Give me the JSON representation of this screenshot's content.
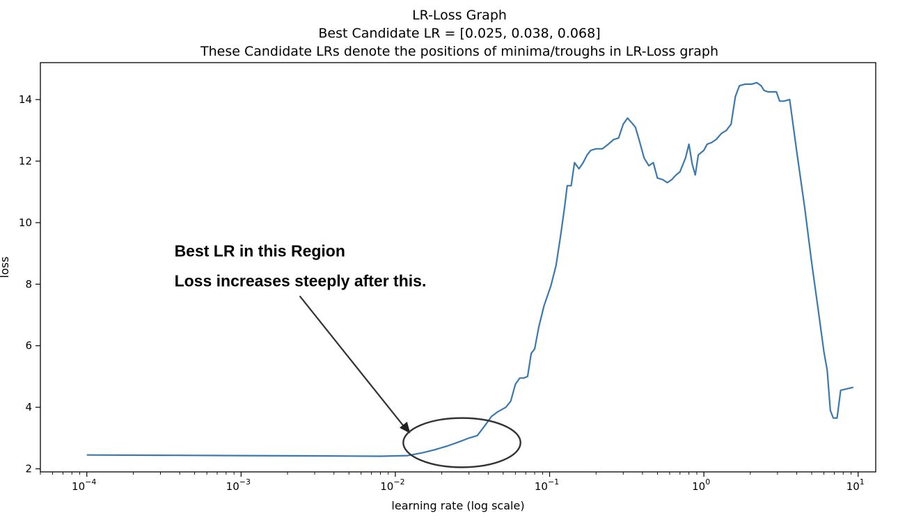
{
  "chart_data": {
    "type": "line",
    "title_lines": [
      "LR-Loss Graph",
      "Best Candidate LR = [0.025, 0.038, 0.068]",
      "These Candidate LRs denote the positions of minima/troughs in LR-Loss graph"
    ],
    "xlabel": "learning rate (log scale)",
    "ylabel": "loss",
    "x_scale": "log",
    "xlim": [
      5e-05,
      13
    ],
    "ylim": [
      1.9,
      15.2
    ],
    "x_ticks": [
      {
        "value": 0.0001,
        "base": "10",
        "exp": "−4"
      },
      {
        "value": 0.001,
        "base": "10",
        "exp": "−3"
      },
      {
        "value": 0.01,
        "base": "10",
        "exp": "−2"
      },
      {
        "value": 0.1,
        "base": "10",
        "exp": "−1"
      },
      {
        "value": 1,
        "base": "10",
        "exp": "0"
      },
      {
        "value": 10,
        "base": "10",
        "exp": "1"
      }
    ],
    "y_ticks": [
      "2",
      "4",
      "6",
      "8",
      "10",
      "12",
      "14"
    ],
    "grid": false,
    "line_color": "#3a78b0",
    "series": [
      {
        "name": "",
        "points": [
          [
            0.0001,
            2.45
          ],
          [
            0.0003,
            2.44
          ],
          [
            0.001,
            2.43
          ],
          [
            0.003,
            2.42
          ],
          [
            0.008,
            2.41
          ],
          [
            0.012,
            2.43
          ],
          [
            0.015,
            2.52
          ],
          [
            0.018,
            2.62
          ],
          [
            0.022,
            2.75
          ],
          [
            0.026,
            2.88
          ],
          [
            0.03,
            3.0
          ],
          [
            0.034,
            3.08
          ],
          [
            0.038,
            3.4
          ],
          [
            0.042,
            3.7
          ],
          [
            0.046,
            3.85
          ],
          [
            0.052,
            4.0
          ],
          [
            0.056,
            4.2
          ],
          [
            0.06,
            4.75
          ],
          [
            0.064,
            4.95
          ],
          [
            0.068,
            4.95
          ],
          [
            0.072,
            5.0
          ],
          [
            0.076,
            5.75
          ],
          [
            0.08,
            5.9
          ],
          [
            0.085,
            6.6
          ],
          [
            0.092,
            7.3
          ],
          [
            0.098,
            7.7
          ],
          [
            0.102,
            7.95
          ],
          [
            0.11,
            8.6
          ],
          [
            0.118,
            9.6
          ],
          [
            0.125,
            10.5
          ],
          [
            0.13,
            11.2
          ],
          [
            0.138,
            11.2
          ],
          [
            0.145,
            11.95
          ],
          [
            0.155,
            11.75
          ],
          [
            0.165,
            11.95
          ],
          [
            0.175,
            12.2
          ],
          [
            0.185,
            12.35
          ],
          [
            0.2,
            12.4
          ],
          [
            0.22,
            12.4
          ],
          [
            0.24,
            12.55
          ],
          [
            0.26,
            12.7
          ],
          [
            0.28,
            12.75
          ],
          [
            0.3,
            13.2
          ],
          [
            0.32,
            13.4
          ],
          [
            0.34,
            13.25
          ],
          [
            0.36,
            13.1
          ],
          [
            0.38,
            12.7
          ],
          [
            0.41,
            12.1
          ],
          [
            0.44,
            11.85
          ],
          [
            0.47,
            11.95
          ],
          [
            0.5,
            11.45
          ],
          [
            0.54,
            11.4
          ],
          [
            0.58,
            11.3
          ],
          [
            0.62,
            11.4
          ],
          [
            0.66,
            11.55
          ],
          [
            0.7,
            11.65
          ],
          [
            0.76,
            12.1
          ],
          [
            0.8,
            12.55
          ],
          [
            0.84,
            11.9
          ],
          [
            0.88,
            11.55
          ],
          [
            0.92,
            12.2
          ],
          [
            1.0,
            12.35
          ],
          [
            1.05,
            12.55
          ],
          [
            1.12,
            12.6
          ],
          [
            1.2,
            12.7
          ],
          [
            1.3,
            12.9
          ],
          [
            1.4,
            13.0
          ],
          [
            1.5,
            13.2
          ],
          [
            1.6,
            14.1
          ],
          [
            1.7,
            14.45
          ],
          [
            1.85,
            14.5
          ],
          [
            2.05,
            14.5
          ],
          [
            2.2,
            14.55
          ],
          [
            2.35,
            14.45
          ],
          [
            2.45,
            14.3
          ],
          [
            2.6,
            14.25
          ],
          [
            2.8,
            14.25
          ],
          [
            2.95,
            14.25
          ],
          [
            3.1,
            13.95
          ],
          [
            3.3,
            13.95
          ],
          [
            3.6,
            14.0
          ],
          [
            4.0,
            12.3
          ],
          [
            4.5,
            10.5
          ],
          [
            5.0,
            8.7
          ],
          [
            5.5,
            7.2
          ],
          [
            6.0,
            5.8
          ],
          [
            6.3,
            5.2
          ],
          [
            6.6,
            3.9
          ],
          [
            6.9,
            3.65
          ],
          [
            7.3,
            3.65
          ],
          [
            7.7,
            4.55
          ],
          [
            8.5,
            4.6
          ],
          [
            9.3,
            4.65
          ]
        ]
      }
    ],
    "annotation": {
      "lines": [
        "Best LR in this Region",
        "Loss increases steeply after this."
      ],
      "arrow_from": [
        0.0024,
        8.7
      ],
      "arrow_to": [
        0.0125,
        3.15
      ],
      "ellipse": {
        "cx": 0.027,
        "cy": 2.85,
        "rx_decades": 0.38,
        "ry": 0.8
      }
    }
  }
}
